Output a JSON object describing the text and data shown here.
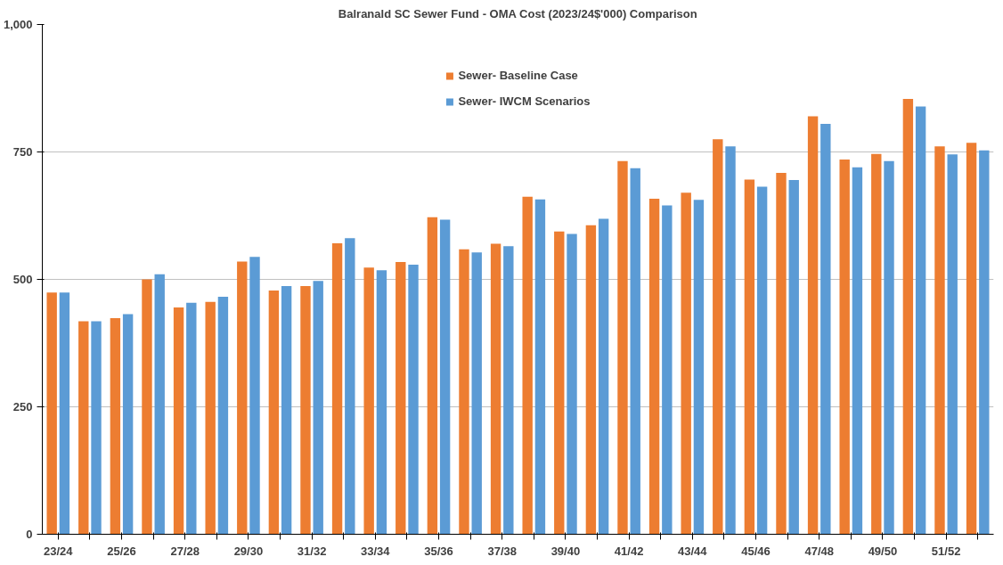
{
  "chart_data": {
    "type": "bar",
    "title": "Balranald SC Sewer Fund - OMA Cost (2023/24$'000) Comparison",
    "categories": [
      "23/24",
      null,
      "25/26",
      null,
      "27/28",
      null,
      "29/30",
      null,
      "31/32",
      null,
      "33/34",
      null,
      "35/36",
      null,
      "37/38",
      null,
      "39/40",
      null,
      "41/42",
      null,
      "43/44",
      null,
      "45/46",
      null,
      "47/48",
      null,
      "49/50",
      null,
      "51/52",
      null
    ],
    "series": [
      {
        "name": "Sewer- Baseline Case",
        "color": "#ed7d31",
        "values": [
          474,
          418,
          424,
          500,
          445,
          456,
          535,
          478,
          487,
          571,
          523,
          534,
          622,
          559,
          570,
          662,
          594,
          606,
          732,
          658,
          670,
          775,
          696,
          709,
          820,
          735,
          746,
          854,
          761,
          768
        ]
      },
      {
        "name": "Sewer- IWCM Scenarios",
        "color": "#5b9bd5",
        "values": [
          474,
          418,
          432,
          510,
          454,
          466,
          544,
          487,
          497,
          581,
          518,
          529,
          617,
          553,
          565,
          657,
          589,
          619,
          718,
          645,
          656,
          761,
          682,
          695,
          805,
          720,
          732,
          839,
          745,
          753
        ]
      }
    ],
    "ylim": [
      0,
      1000
    ],
    "yticks": [
      0,
      250,
      500,
      750,
      {
        "value": 1000,
        "label": "1,000"
      }
    ],
    "grid": "y",
    "legend": "top"
  }
}
